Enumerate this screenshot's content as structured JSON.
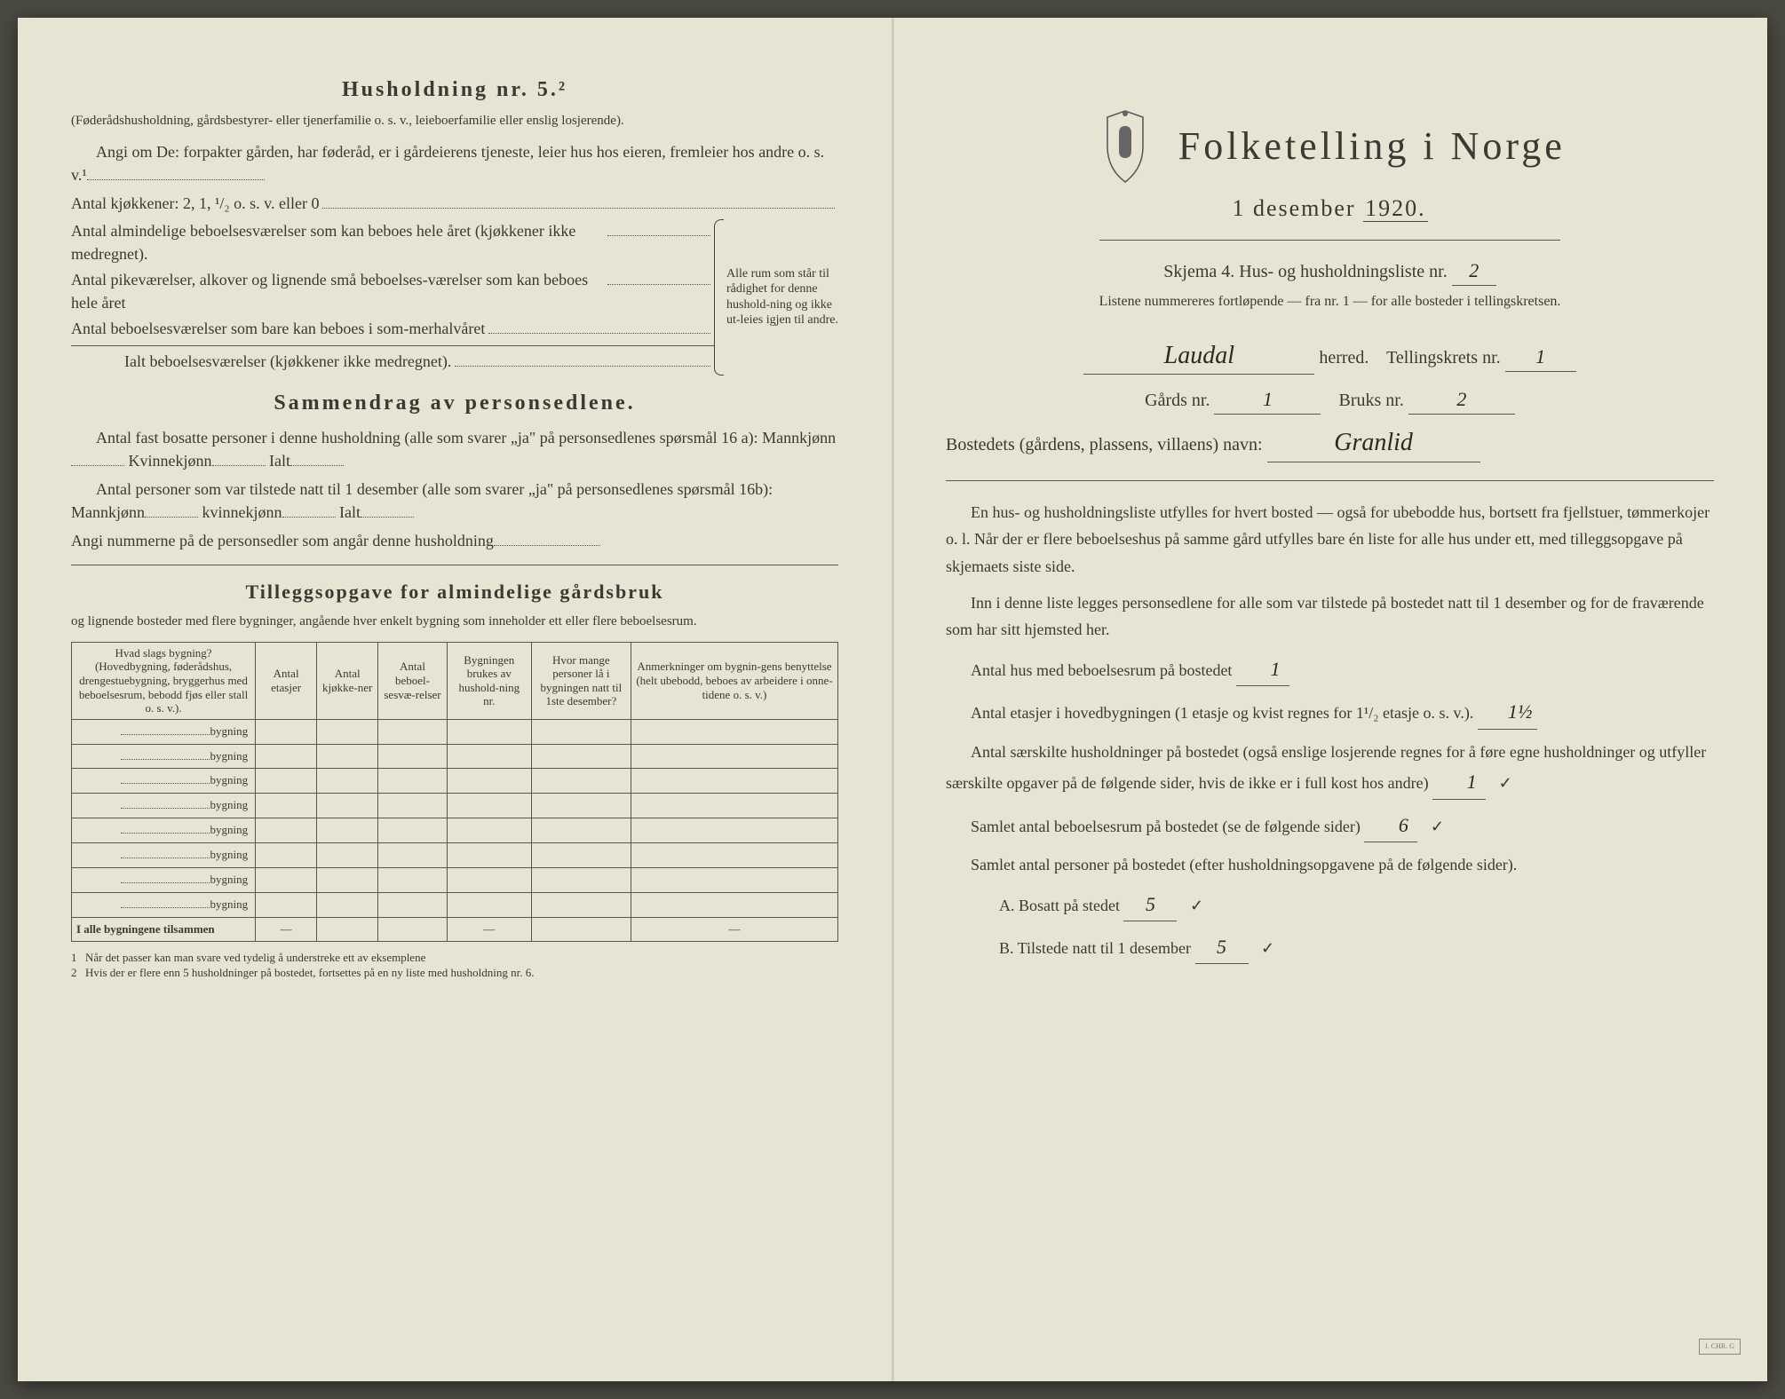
{
  "left": {
    "husholdning_title": "Husholdning nr. 5.²",
    "husholdning_note": "(Føderådshusholdning, gårdsbestyrer- eller tjenerfamilie o. s. v., leieboerfamilie eller enslig losjerende).",
    "angi_line": "Angi om De: forpakter gården, har føderåd, er i gårdeierens tjeneste, leier hus hos eieren, fremleier hos andre o. s. v.¹",
    "kjokken_line": "Antal kjøkkener: 2, 1, ¹/₂ o. s. v. eller 0",
    "bracket_items": [
      "Antal almindelige beboelsesværelser som kan beboes hele året (kjøkkener ikke medregnet).",
      "Antal pikeværelser, alkover og lignende små beboelses-værelser som kan beboes hele året",
      "Antal beboelsesværelser som bare kan beboes i som-merhalvåret",
      "Ialt beboelsesværelser (kjøkkener ikke medregnet)."
    ],
    "bracket_note": "Alle rum som står til rådighet for denne hushold-ning og ikke ut-leies igjen til andre.",
    "sammendrag_title": "Sammendrag av personsedlene.",
    "sammendrag_p1": "Antal fast bosatte personer i denne husholdning (alle som svarer „ja\" på personsedlenes spørsmål 16 a): Mannkjønn",
    "kvinne": "Kvinnekjønn",
    "ialt": "Ialt",
    "sammendrag_p2": "Antal personer som var tilstede natt til 1 desember (alle som svarer „ja\" på personsedlenes spørsmål 16b): Mannkjønn",
    "kvinne2": "kvinnekjønn",
    "angi_nummer": "Angi nummerne på de personsedler som angår denne husholdning",
    "tillegg_title": "Tilleggsopgave for almindelige gårdsbruk",
    "tillegg_sub": "og lignende bosteder med flere bygninger, angående hver enkelt bygning som inneholder ett eller flere beboelsesrum.",
    "table_headers": [
      "Hvad slags bygning?\n(Hovedbygning, føderådshus, drengestuebygning, bryggerhus med beboelsesrum, bebodd fjøs eller stall o. s. v.).",
      "Antal etasjer",
      "Antal kjøkke-ner",
      "Antal beboel-sesvæ-relser",
      "Bygningen brukes av hushold-ning nr.",
      "Hvor mange personer lå i bygningen natt til 1ste desember?",
      "Anmerkninger om bygnin-gens benyttelse (helt ubebodd, beboes av arbeidere i onne-tidene o. s. v.)"
    ],
    "bygning_word": "bygning",
    "row_count": 8,
    "total_row": "I alle bygningene tilsammen",
    "footnote1": "Når det passer kan man svare ved tydelig å understreke ett av eksemplene",
    "footnote2": "Hvis der er flere enn 5 husholdninger på bostedet, fortsettes på en ny liste med husholdning nr. 6."
  },
  "right": {
    "main_title": "Folketelling i Norge",
    "subtitle_pre": "1 desember",
    "subtitle_year": "1920.",
    "skjema": "Skjema 4.  Hus- og husholdningsliste nr.",
    "skjema_val": "2",
    "listene": "Listene nummereres fortløpende — fra nr. 1 — for alle bosteder i tellingskretsen.",
    "herred_val": "Laudal",
    "herred_label": "herred.",
    "tellingskrets": "Tellingskrets nr.",
    "tellingskrets_val": "1",
    "gards": "Gårds nr.",
    "gards_val": "1",
    "bruks": "Bruks nr.",
    "bruks_val": "2",
    "bosted_label": "Bostedets (gårdens, plassens, villaens) navn:",
    "bosted_val": "Granlid",
    "para1": "En hus- og husholdningsliste utfylles for hvert bosted — også for ubebodde hus, bortsett fra fjellstuer, tømmerkojer o. l. Når der er flere beboelseshus på samme gård utfylles bare én liste for alle hus under ett, med tilleggsopgave på skjemaets siste side.",
    "para2": "Inn i denne liste legges personsedlene for alle som var tilstede på bostedet natt til 1 desember og for de fraværende som har sitt hjemsted her.",
    "antal_hus": "Antal hus med beboelsesrum på bostedet",
    "antal_hus_val": "1",
    "antal_etasjer": "Antal etasjer i hovedbygningen (1 etasje og kvist regnes for 1¹/₂ etasje o. s. v.).",
    "antal_etasjer_val": "1½",
    "antal_saerskilte": "Antal særskilte husholdninger på bostedet (også enslige losjerende regnes for å føre egne husholdninger og utfyller særskilte opgaver på de følgende sider, hvis de ikke er i full kost hos andre)",
    "antal_saerskilte_val": "1",
    "samlet_beboelse": "Samlet antal beboelsesrum på bostedet (se de følgende sider)",
    "samlet_beboelse_val": "6",
    "samlet_personer": "Samlet antal personer på bostedet (efter husholdningsopgavene på de følgende sider).",
    "bosatt_label": "A.  Bosatt på stedet",
    "bosatt_val": "5",
    "tilstede_label": "B.  Tilstede natt til 1 desember",
    "tilstede_val": "5",
    "check": "✓"
  },
  "colors": {
    "paper": "#e8e4d4",
    "ink": "#3a3a32",
    "handwriting": "#2a2a22"
  }
}
